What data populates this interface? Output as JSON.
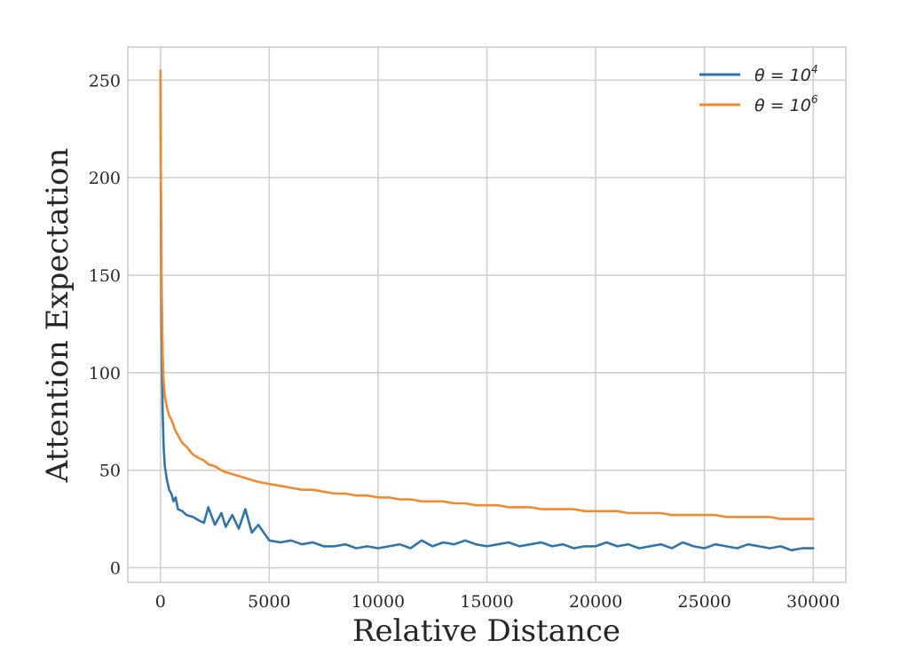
{
  "chart_data": {
    "type": "line",
    "title": "",
    "xlabel": "Relative Distance",
    "ylabel": "Attention Expectation",
    "xlim": [
      -1500,
      31500
    ],
    "ylim": [
      -7.5,
      267
    ],
    "x_ticks": [
      0,
      5000,
      10000,
      15000,
      20000,
      25000,
      30000
    ],
    "x_tick_labels": [
      "0",
      "5000",
      "10000",
      "15000",
      "20000",
      "25000",
      "30000"
    ],
    "y_ticks": [
      0,
      50,
      100,
      150,
      200,
      250
    ],
    "y_tick_labels": [
      "0",
      "50",
      "100",
      "150",
      "200",
      "250"
    ],
    "grid": true,
    "legend_position": "top-right",
    "series": [
      {
        "name": "θ = 10^4",
        "legend_base": "θ = 10",
        "legend_exp": "4",
        "color": "#3274a8",
        "x": [
          0,
          20,
          50,
          100,
          150,
          200,
          300,
          400,
          500,
          600,
          700,
          800,
          1000,
          1200,
          1500,
          1800,
          2000,
          2200,
          2500,
          2800,
          3000,
          3300,
          3600,
          3900,
          4200,
          4500,
          5000,
          5500,
          6000,
          6500,
          7000,
          7500,
          8000,
          8500,
          9000,
          9500,
          10000,
          10500,
          11000,
          11500,
          12000,
          12500,
          13000,
          13500,
          14000,
          14500,
          15000,
          15500,
          16000,
          16500,
          17000,
          17500,
          18000,
          18500,
          19000,
          19500,
          20000,
          20500,
          21000,
          21500,
          22000,
          22500,
          23000,
          23500,
          24000,
          24500,
          25000,
          25500,
          26000,
          26500,
          27000,
          27500,
          28000,
          28500,
          29000,
          29500,
          30000
        ],
        "y": [
          250,
          180,
          125,
          80,
          62,
          52,
          45,
          40,
          38,
          34,
          36,
          30,
          29,
          27,
          26,
          24,
          23,
          31,
          22,
          28,
          21,
          27,
          20,
          30,
          18,
          22,
          14,
          13,
          14,
          12,
          13,
          11,
          11,
          12,
          10,
          11,
          10,
          11,
          12,
          10,
          14,
          11,
          13,
          12,
          14,
          12,
          11,
          12,
          13,
          11,
          12,
          13,
          11,
          12,
          10,
          11,
          11,
          13,
          11,
          12,
          10,
          11,
          12,
          10,
          13,
          11,
          10,
          12,
          11,
          10,
          12,
          11,
          10,
          11,
          9,
          10,
          10
        ]
      },
      {
        "name": "θ = 10^6",
        "legend_base": "θ = 10",
        "legend_exp": "6",
        "color": "#f08a30",
        "x": [
          0,
          20,
          50,
          100,
          150,
          200,
          300,
          400,
          500,
          600,
          700,
          800,
          1000,
          1200,
          1500,
          1800,
          2000,
          2200,
          2500,
          2800,
          3000,
          3300,
          3600,
          3900,
          4200,
          4500,
          5000,
          5500,
          6000,
          6500,
          7000,
          7500,
          8000,
          8500,
          9000,
          9500,
          10000,
          10500,
          11000,
          11500,
          12000,
          12500,
          13000,
          13500,
          14000,
          14500,
          15000,
          15500,
          16000,
          16500,
          17000,
          17500,
          18000,
          18500,
          19000,
          19500,
          20000,
          20500,
          21000,
          21500,
          22000,
          22500,
          23000,
          23500,
          24000,
          24500,
          25000,
          25500,
          26000,
          26500,
          27000,
          27500,
          28000,
          28500,
          29000,
          29500,
          30000
        ],
        "y": [
          255,
          200,
          150,
          110,
          95,
          88,
          82,
          78,
          76,
          73,
          70,
          68,
          64,
          62,
          58,
          56,
          55,
          53,
          52,
          50,
          49,
          48,
          47,
          46,
          45,
          44,
          43,
          42,
          41,
          40,
          40,
          39,
          38,
          38,
          37,
          37,
          36,
          36,
          35,
          35,
          34,
          34,
          34,
          33,
          33,
          32,
          32,
          32,
          31,
          31,
          31,
          30,
          30,
          30,
          30,
          29,
          29,
          29,
          29,
          28,
          28,
          28,
          28,
          27,
          27,
          27,
          27,
          27,
          26,
          26,
          26,
          26,
          26,
          25,
          25,
          25,
          25
        ]
      }
    ]
  }
}
